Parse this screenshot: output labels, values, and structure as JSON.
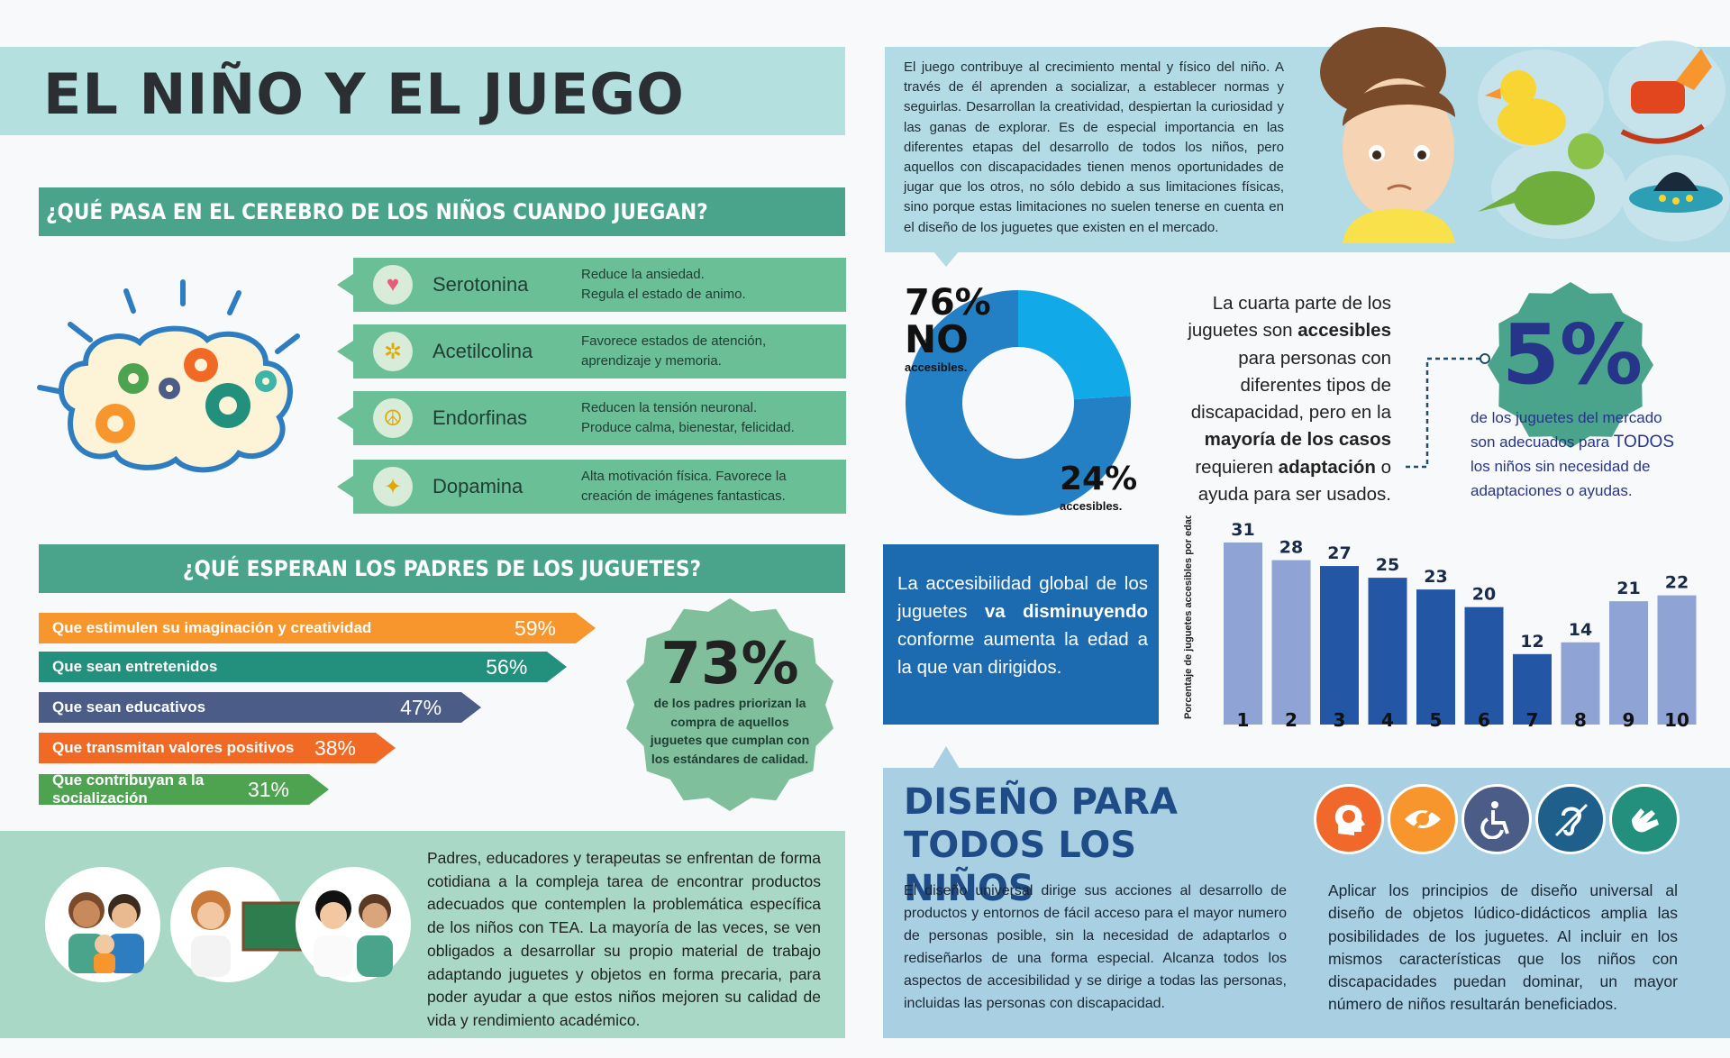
{
  "title": "EL NIÑO Y EL JUEGO",
  "brain_section": {
    "heading": "¿QUÉ PASA EN EL CEREBRO DE LOS NIÑOS CUANDO JUEGAN?",
    "items": [
      {
        "name": "Serotonina",
        "icon": "heart-icon",
        "desc1": "Reduce la ansiedad.",
        "desc2": "Regula el estado de animo."
      },
      {
        "name": "Acetilcolina",
        "icon": "molecule-icon",
        "desc1": "Favorece estados de atención,",
        "desc2": "aprendizaje y memoria."
      },
      {
        "name": "Endorfinas",
        "icon": "peace-icon",
        "desc1": "Reducen la tensión neuronal.",
        "desc2": "Produce calma, bienestar, felicidad."
      },
      {
        "name": "Dopamina",
        "icon": "magic-wand-icon",
        "desc1": "Alta motivación física. Favorece la",
        "desc2": "creación de imágenes fantasticas."
      }
    ]
  },
  "parents_section": {
    "heading": "¿QUÉ ESPERAN LOS PADRES DE LOS JUGUETES?",
    "bars": [
      {
        "label": "Que estimulen su imaginación y creatividad",
        "value": "59%",
        "percent": 59,
        "color": "#f7962d"
      },
      {
        "label": "Que sean entretenidos",
        "value": "56%",
        "percent": 56,
        "color": "#23907e"
      },
      {
        "label": "Que sean educativos",
        "value": "47%",
        "percent": 47,
        "color": "#4b5c86"
      },
      {
        "label": "Que transmitan valores positivos",
        "value": "38%",
        "percent": 38,
        "color": "#f06a26"
      },
      {
        "label": "Que contribuyan a la socialización",
        "value": "31%",
        "percent": 31,
        "color": "#4ea350"
      }
    ],
    "badge_value": "73%",
    "badge_text": "de los padres priorizan la compra de aquellos juguetes que cumplan con los estándares de calidad."
  },
  "tea_text": "Padres, educadores y terapeutas se enfrentan de forma cotidiana a la compleja tarea de encontrar productos adecuados que contemplen la problemática específica de los niños con TEA. La mayoría de las veces, se ven obligados a desarrollar su propio material de trabajo adaptando juguetes y objetos en forma precaria, para poder ayudar a que estos niños mejoren su calidad de vida y rendimiento académico.",
  "intro_text": "El juego contribuye al crecimiento mental y físico del niño. A través de él aprenden a socializar, a establecer normas y seguirlas. Desarrollan la creatividad, despiertan la curiosidad y las ganas de explorar. Es de especial importancia en las diferentes etapas del desarrollo de todos los niños, pero aquellos con discapacidades tienen menos oportunidades de jugar que los otros, no sólo debido a sus limitaciones físicas, sino porque estas limitaciones no suelen tenerse en cuenta en el diseño de los juguetes que existen en el mercado.",
  "donut": {
    "no_pct": "76%",
    "no_word": "NO",
    "no_label": "accesibles.",
    "yes_pct": "24%",
    "yes_label": "accesibles.",
    "values": [
      76,
      24
    ],
    "colors": [
      "#2480c4",
      "#12a9e9"
    ]
  },
  "quarter": {
    "t1": "La cuarta parte de los juguetes son ",
    "b1": "accesibles",
    "t2": " para personas con diferentes tipos de discapacidad, pero en la ",
    "b2": "mayoría de los casos",
    "t3": " requieren ",
    "b3": "adaptación",
    "t4": " o ayuda para ser usados."
  },
  "five_badge": {
    "value": "5%",
    "text1": "de los juguetes del mercado son adecuados para ",
    "highlight": "TODOS",
    "text2": " los niños sin necesidad de adaptaciones o ayudas."
  },
  "accessibility": {
    "t1": "La accesibilidad global de los juguetes ",
    "bold": "va disminuyendo",
    "t2": " conforme aumenta la edad a la que van dirigidos."
  },
  "chart_data": {
    "type": "bar",
    "ylabel": "Porcentaje de juguetes accesibles por edad",
    "categories": [
      "1",
      "2",
      "3",
      "4",
      "5",
      "6",
      "7",
      "8",
      "9",
      "10"
    ],
    "values": [
      31,
      28,
      27,
      25,
      23,
      20,
      12,
      14,
      21,
      22
    ],
    "colors": [
      "#8fa3d4",
      "#8fa3d4",
      "#2456a6",
      "#2456a6",
      "#2456a6",
      "#2456a6",
      "#2456a6",
      "#8fa3d4",
      "#8fa3d4",
      "#8fa3d4"
    ],
    "ylim": [
      0,
      31
    ],
    "grid": false
  },
  "design": {
    "title": "DISEÑO PARA TODOS LOS NIÑOS",
    "p1": "El diseño universal dirige sus acciones al desarrollo de productos y entornos de fácil acceso para el mayor numero de personas posible, sin la necesidad de adaptarlos o rediseñarlos de una forma especial. Alcanza todos los aspectos de accesibilidad y se dirige a todas las personas, incluidas las personas con discapacidad.",
    "p2": "Aplicar los principios de diseño universal al diseño de objetos lúdico-didácticos amplia las posibilidades de los juguetes. Al incluir en los mismos características que los niños con discapacidades puedan dominar, un mayor número de niños resultarán beneficiados.",
    "icons": [
      {
        "name": "cognitive-head-icon",
        "color": "#f0682a"
      },
      {
        "name": "visual-impairment-icon",
        "color": "#f7962d"
      },
      {
        "name": "wheelchair-icon",
        "color": "#4b5c86"
      },
      {
        "name": "hearing-impairment-icon",
        "color": "#1e5f8c"
      },
      {
        "name": "sign-language-icon",
        "color": "#23907e"
      }
    ]
  }
}
